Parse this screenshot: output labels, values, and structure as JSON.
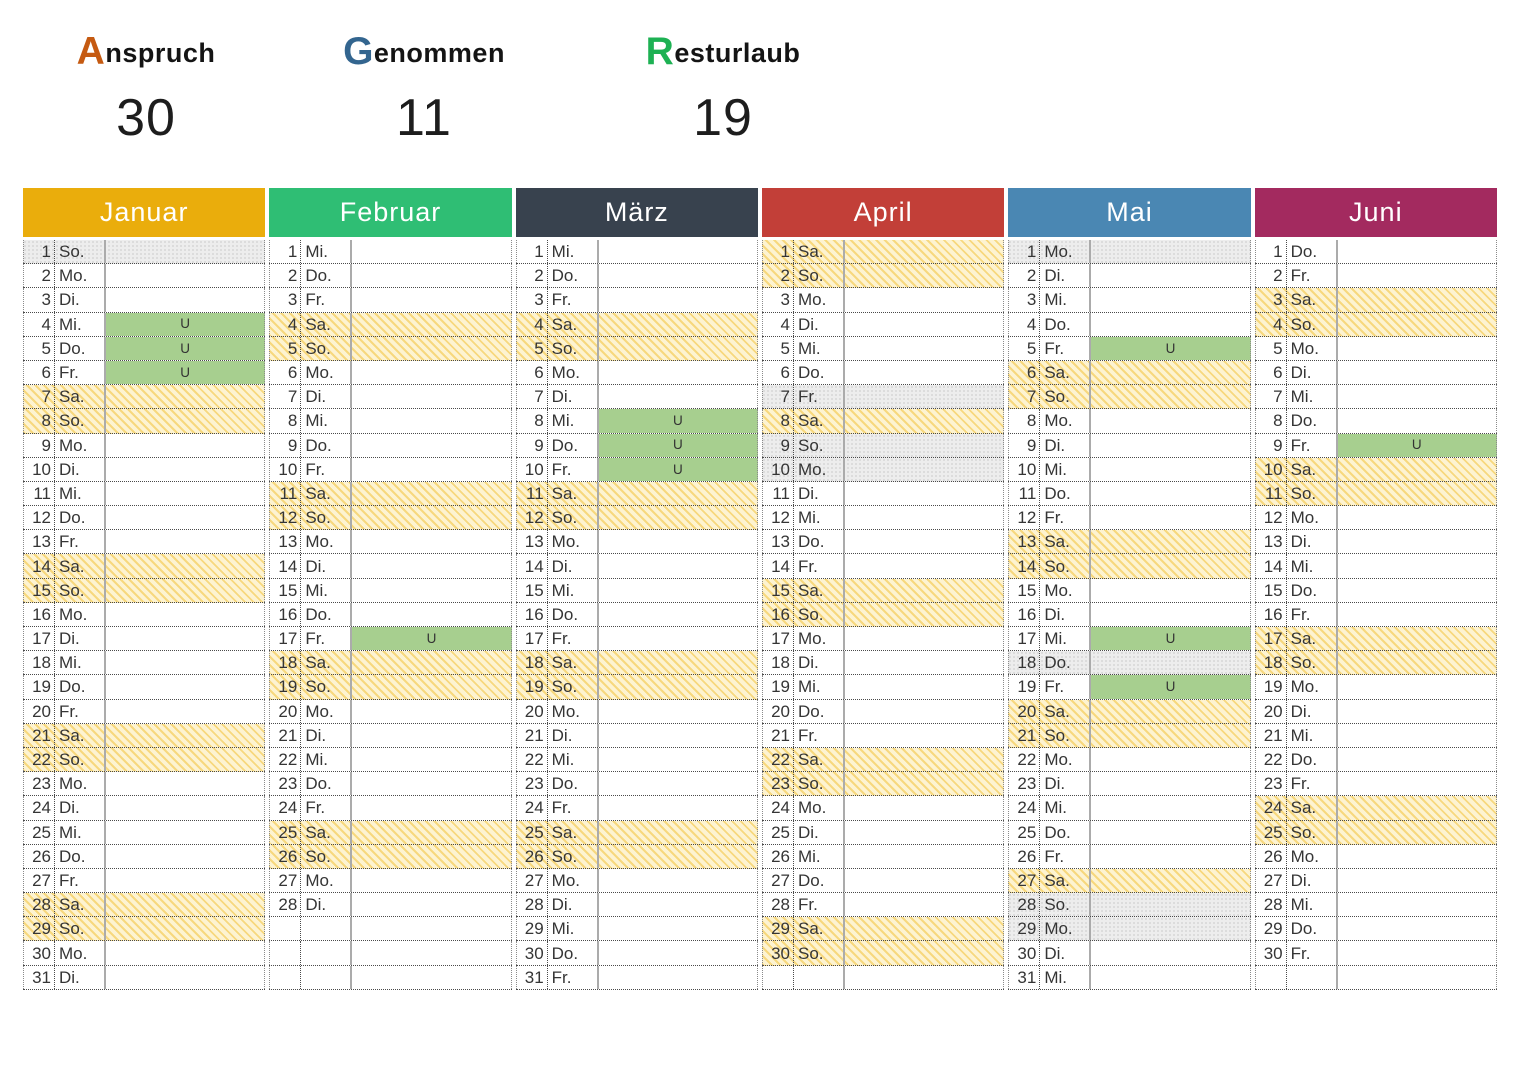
{
  "summary": {
    "metrics": [
      {
        "initial": "A",
        "rest": "nspruch",
        "value": "30",
        "initial_color": "#C55A11"
      },
      {
        "initial": "G",
        "rest": "enommen",
        "value": "11",
        "initial_color": "#33658F"
      },
      {
        "initial": "R",
        "rest": "esturlaub",
        "value": "19",
        "initial_color": "#1DB153"
      }
    ]
  },
  "calendar": {
    "weekday_labels": [
      "Mo.",
      "Di.",
      "Mi.",
      "Do.",
      "Fr.",
      "Sa.",
      "So."
    ],
    "vacation_marker": "U",
    "rows_per_month": 31,
    "status_colors": {
      "weekend_stripe": "#F7D87E",
      "weekend_base": "#FDF3D1",
      "holiday_gray": "#EDEDED",
      "vacation_green": "#A7CF8F"
    },
    "months": [
      {
        "id": "januar",
        "name": "Januar",
        "color": "#EAAD0C",
        "num_days": 31,
        "first_weekday_index": 6,
        "weekend": [
          7,
          8,
          14,
          15,
          21,
          22,
          28,
          29
        ],
        "holiday": [
          1
        ],
        "vacation": [
          4,
          5,
          6
        ]
      },
      {
        "id": "februar",
        "name": "Februar",
        "color": "#2FBE74",
        "num_days": 28,
        "first_weekday_index": 2,
        "weekend": [
          4,
          5,
          11,
          12,
          18,
          19,
          25,
          26
        ],
        "holiday": [],
        "vacation": [
          17
        ]
      },
      {
        "id": "maerz",
        "name": "März",
        "color": "#38424E",
        "num_days": 31,
        "first_weekday_index": 2,
        "weekend": [
          4,
          5,
          11,
          12,
          18,
          19,
          25,
          26
        ],
        "holiday": [],
        "vacation": [
          8,
          9,
          10
        ]
      },
      {
        "id": "april",
        "name": "April",
        "color": "#C23F38",
        "num_days": 30,
        "first_weekday_index": 5,
        "weekend": [
          1,
          2,
          8,
          9,
          15,
          16,
          22,
          23,
          29,
          30
        ],
        "holiday": [
          7,
          9,
          10
        ],
        "vacation": []
      },
      {
        "id": "mai",
        "name": "Mai",
        "color": "#4A87B3",
        "num_days": 31,
        "first_weekday_index": 0,
        "weekend": [
          6,
          7,
          13,
          14,
          20,
          21,
          27,
          28
        ],
        "holiday": [
          1,
          18,
          28,
          29
        ],
        "vacation": [
          5,
          17,
          19
        ]
      },
      {
        "id": "juni",
        "name": "Juni",
        "color": "#A32A5F",
        "num_days": 30,
        "first_weekday_index": 3,
        "weekend": [
          3,
          4,
          10,
          11,
          17,
          18,
          24,
          25
        ],
        "holiday": [],
        "vacation": [
          9
        ]
      }
    ]
  }
}
